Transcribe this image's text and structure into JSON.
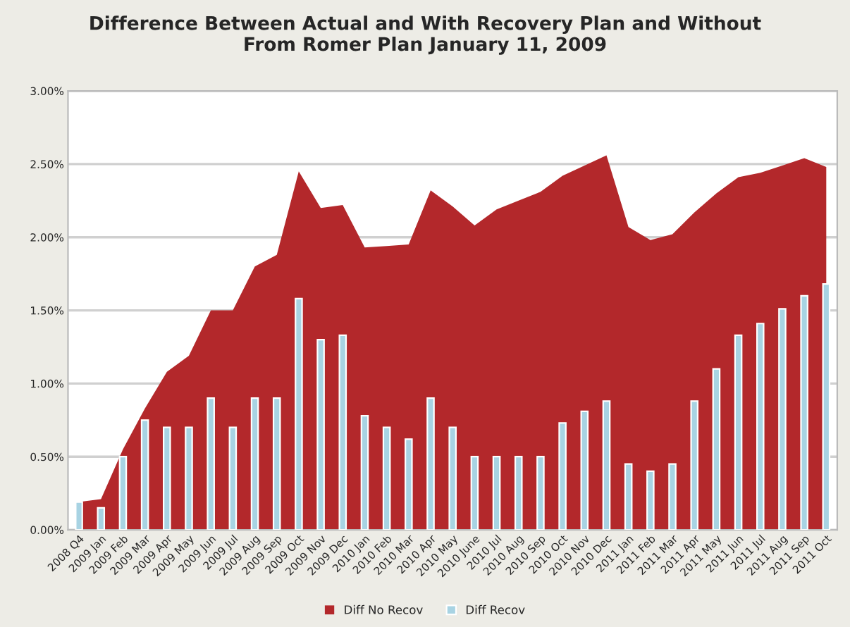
{
  "chart_data": {
    "type": "bar",
    "title": "Difference Between Actual and With Recovery Plan and Without\nFrom Romer Plan January 11, 2009",
    "categories": [
      "2008 Q4",
      "2009 Jan",
      "2009 Feb",
      "2009 Mar",
      "2009 Apr",
      "2009 May",
      "2009 Jun",
      "2009 Jul",
      "2009 Aug",
      "2009 Sep",
      "2009 Oct",
      "2009 Nov",
      "2009 Dec",
      "2010 Jan",
      "2010 Feb",
      "2010 Mar",
      "2010 Apr",
      "2010 May",
      "2010 June",
      "2010 Jul",
      "2010 Aug",
      "2010 Sep",
      "2010 Oct",
      "2010 Nov",
      "2010 Dec",
      "2011 Jan",
      "2011 Feb",
      "2011 Mar",
      "2011 Apr",
      "2011 May",
      "2011 Jun",
      "2011 Jul",
      "2011 Aug",
      "2011 Sep",
      "2011 Oct"
    ],
    "series": [
      {
        "name": "Diff No Recov",
        "type": "area",
        "color": "#b3282b",
        "values": [
          0.19,
          0.21,
          0.55,
          0.83,
          1.08,
          1.19,
          1.5,
          1.5,
          1.8,
          1.88,
          2.45,
          2.2,
          2.22,
          1.93,
          1.94,
          1.95,
          2.32,
          2.21,
          2.08,
          2.19,
          2.25,
          2.31,
          2.42,
          2.49,
          2.56,
          2.07,
          1.98,
          2.02,
          2.17,
          2.3,
          2.41,
          2.44,
          2.49,
          2.54,
          2.48
        ]
      },
      {
        "name": "Diff Recov",
        "color": "#a8d3e3",
        "values": [
          0.19,
          0.15,
          0.5,
          0.75,
          0.7,
          0.7,
          0.9,
          0.7,
          0.9,
          0.9,
          1.58,
          1.3,
          1.33,
          0.78,
          0.7,
          0.62,
          0.9,
          0.7,
          0.5,
          0.5,
          0.5,
          0.5,
          0.73,
          0.81,
          0.88,
          0.45,
          0.4,
          0.45,
          0.88,
          1.1,
          1.33,
          1.41,
          1.51,
          1.6,
          1.68
        ]
      }
    ],
    "ylim": [
      0,
      3
    ],
    "yticks": [
      {
        "value": 0,
        "label": "0.00%"
      },
      {
        "value": 0.5,
        "label": "0.50%"
      },
      {
        "value": 1,
        "label": "1.00%"
      },
      {
        "value": 1.5,
        "label": "1.50%"
      },
      {
        "value": 2,
        "label": "2.00%"
      },
      {
        "value": 2.5,
        "label": "2.50%"
      },
      {
        "value": 3,
        "label": "3.00%"
      }
    ],
    "grid": "y",
    "legend": "bottom"
  }
}
